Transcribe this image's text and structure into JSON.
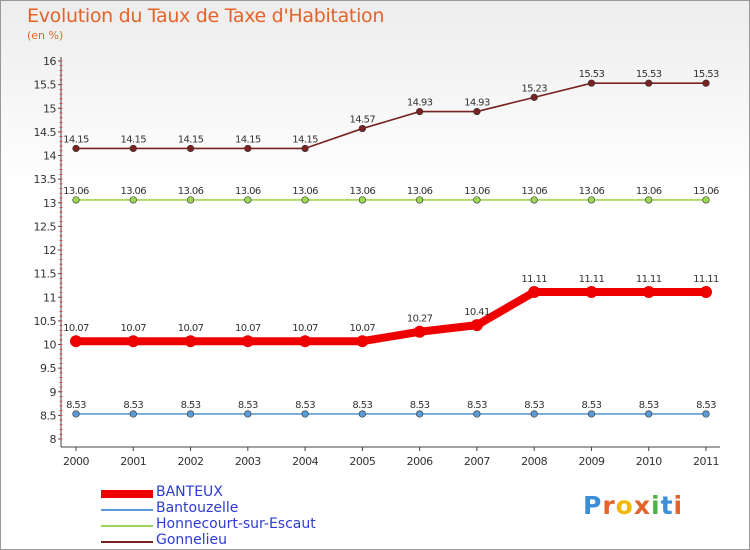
{
  "header": {
    "title": "Evolution du Taux de Taxe d'Habitation",
    "unit": "(en %)"
  },
  "logo": {
    "text": "Proxiti",
    "letter_colors": [
      "#3a8fd6",
      "#e4632a",
      "#f2b807",
      "#e4632a",
      "#4bb543",
      "#3a8fd6",
      "#e4632a"
    ]
  },
  "chart_data": {
    "type": "line",
    "title": "Evolution du Taux de Taxe d'Habitation",
    "ylabel": "(en %)",
    "xlabel": "",
    "x": [
      "2000",
      "2001",
      "2002",
      "2003",
      "2004",
      "2005",
      "2006",
      "2007",
      "2008",
      "2009",
      "2010",
      "2011"
    ],
    "ylim": [
      8,
      16
    ],
    "yticks": [
      "8",
      "8.5",
      "9",
      "9.5",
      "10",
      "10.5",
      "11",
      "11.5",
      "12",
      "12.5",
      "13",
      "13.5",
      "14",
      "14.5",
      "15",
      "15.5",
      "16"
    ],
    "grid": false,
    "legend_position": "bottom-left",
    "series": [
      {
        "name": "BANTEUX",
        "color": "#ee0000",
        "emphasis": true,
        "values": [
          10.07,
          10.07,
          10.07,
          10.07,
          10.07,
          10.07,
          10.27,
          10.41,
          11.11,
          11.11,
          11.11,
          11.11
        ],
        "labels": [
          "10.07",
          "10.07",
          "10.07",
          "10.07",
          "10.07",
          "10.07",
          "10.27",
          "10.41",
          "11.11",
          "11.11",
          "11.11",
          "11.11"
        ]
      },
      {
        "name": "Bantouzelle",
        "color": "#5b9bd5",
        "emphasis": false,
        "values": [
          8.53,
          8.53,
          8.53,
          8.53,
          8.53,
          8.53,
          8.53,
          8.53,
          8.53,
          8.53,
          8.53,
          8.53
        ],
        "labels": [
          "8.53",
          "8.53",
          "8.53",
          "8.53",
          "8.53",
          "8.53",
          "8.53",
          "8.53",
          "8.53",
          "8.53",
          "8.53",
          "8.53"
        ]
      },
      {
        "name": "Honnecourt-sur-Escaut",
        "color": "#9dd852",
        "emphasis": false,
        "values": [
          13.06,
          13.06,
          13.06,
          13.06,
          13.06,
          13.06,
          13.06,
          13.06,
          13.06,
          13.06,
          13.06,
          13.06
        ],
        "labels": [
          "13.06",
          "13.06",
          "13.06",
          "13.06",
          "13.06",
          "13.06",
          "13.06",
          "13.06",
          "13.06",
          "13.06",
          "13.06",
          "13.06"
        ]
      },
      {
        "name": "Gonnelieu",
        "color": "#7a2222",
        "emphasis": false,
        "values": [
          14.15,
          14.15,
          14.15,
          14.15,
          14.15,
          14.57,
          14.93,
          14.93,
          15.23,
          15.53,
          15.53,
          15.53
        ],
        "labels": [
          "14.15",
          "14.15",
          "14.15",
          "14.15",
          "14.15",
          "14.57",
          "14.93",
          "14.93",
          "15.23",
          "15.53",
          "15.53",
          "15.53"
        ]
      }
    ]
  }
}
